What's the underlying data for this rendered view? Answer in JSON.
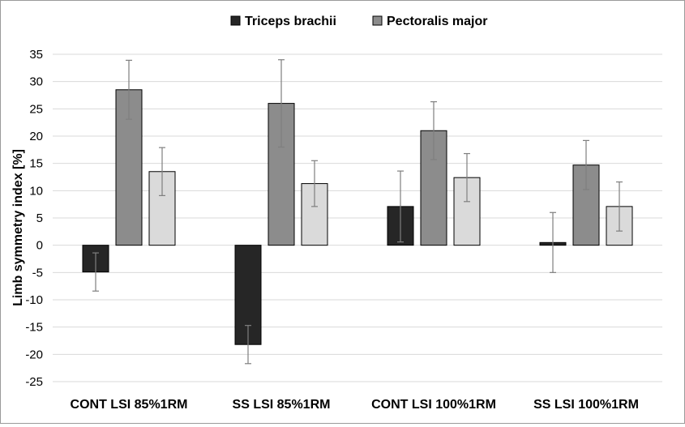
{
  "chart_data": {
    "type": "bar",
    "title": "",
    "xlabel": "",
    "ylabel": "Limb symmetry index [%]",
    "ylim": [
      -25,
      35
    ],
    "ytick_step": 5,
    "grid": true,
    "legend_position": "top-center",
    "categories": [
      "CONT LSI 85%1RM",
      "SS LSI 85%1RM",
      "CONT LSI 100%1RM",
      "SS LSI 100%1RM"
    ],
    "series": [
      {
        "name": "Triceps brachii",
        "color": "#262626",
        "values": [
          -4.9,
          -18.2,
          7.1,
          0.5
        ],
        "errors": [
          3.5,
          3.5,
          6.5,
          5.5
        ]
      },
      {
        "name": "Pectoralis major",
        "color": "#8c8c8c",
        "values": [
          28.5,
          26.0,
          21.0,
          14.7
        ],
        "errors": [
          5.4,
          8.0,
          5.3,
          4.5
        ]
      },
      {
        "name": "",
        "color": "#dadada",
        "values": [
          13.5,
          11.3,
          12.4,
          7.1
        ],
        "errors": [
          4.4,
          4.2,
          4.4,
          4.5
        ]
      }
    ],
    "legend": [
      "Triceps brachii",
      "Pectoralis major"
    ]
  }
}
